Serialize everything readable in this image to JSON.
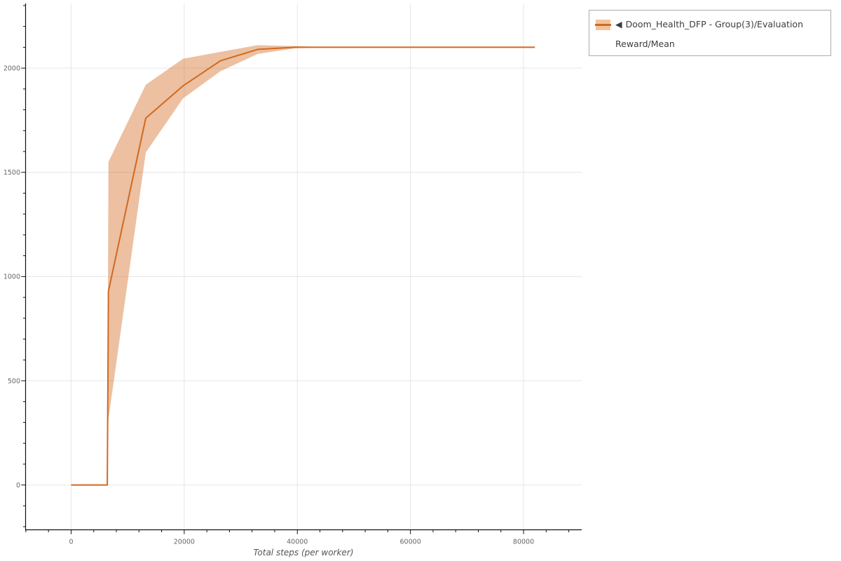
{
  "figure": {
    "background": "#ffffff"
  },
  "chart_data": {
    "type": "line",
    "title": "",
    "xlabel": "Total steps (per worker)",
    "ylabel": "",
    "xlim": [
      -8050,
      90280
    ],
    "ylim": [
      -215,
      2310
    ],
    "grid": "major-only",
    "grid_color": "#e6e6e6",
    "spine_color": "#111111",
    "x_ticks": [
      0,
      20000,
      40000,
      60000,
      80000
    ],
    "x_tick_labels": [
      "0",
      "20000",
      "40000",
      "60000",
      "80000"
    ],
    "x_minor_step": 4000,
    "y_ticks": [
      0,
      500,
      1000,
      1500,
      2000
    ],
    "y_tick_labels": [
      "0",
      "500",
      "1000",
      "1500",
      "2000"
    ],
    "y_minor_step": 100,
    "legend_position": "top-right-outside",
    "series": [
      {
        "name": "Doom_Health_DFP - Group(3)/Evaluation Reward/Mean",
        "line_color": "#d2691e",
        "band_color": "#d2691e",
        "band_opacity": 0.42,
        "x": [
          0,
          6400,
          6600,
          13200,
          19800,
          26400,
          33000,
          39600,
          46200,
          52800,
          59400,
          66000,
          72600,
          79200,
          82000
        ],
        "mean": [
          0,
          0,
          930,
          1760,
          1915,
          2035,
          2090,
          2100,
          2100,
          2100,
          2100,
          2100,
          2100,
          2100,
          2100
        ],
        "lower": [
          0,
          0,
          315,
          1595,
          1855,
          1985,
          2068,
          2095,
          2100,
          2100,
          2100,
          2100,
          2100,
          2100,
          2100
        ],
        "upper": [
          0,
          0,
          1550,
          1920,
          2045,
          2078,
          2110,
          2106,
          2100,
          2100,
          2100,
          2100,
          2100,
          2100,
          2100
        ]
      }
    ]
  },
  "legend": {
    "marker": "◀",
    "label": "Doom_Health_DFP - Group(3)/Evaluation Reward/Mean",
    "swatch_band_color": "#f0c49e",
    "swatch_line_color": "#d2691e"
  }
}
